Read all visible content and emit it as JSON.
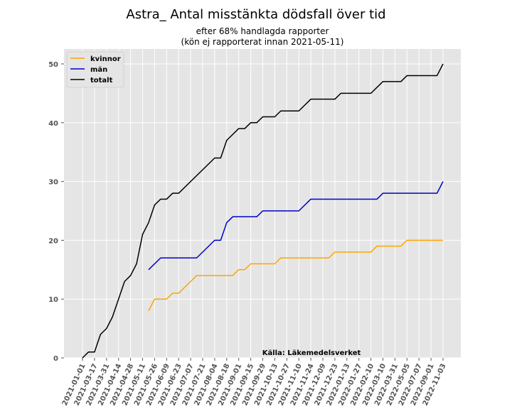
{
  "chart_data": {
    "type": "line",
    "title": "Astra_ Antal misstänkta dödsfall över tid",
    "subtitle_lines": [
      "efter 68% handlagda rapporter",
      "(kön ej rapporterat innan 2021-05-11)"
    ],
    "source": "Källa: Läkemedelsverket",
    "xlabel": "",
    "ylabel": "",
    "ylim": [
      0,
      52.5
    ],
    "yticks": [
      0,
      10,
      20,
      30,
      40,
      50
    ],
    "x_tick_labels": [
      "2021-01-01",
      "2021-03-17",
      "2021-03-31",
      "2021-04-14",
      "2021-04-28",
      "2021-05-11",
      "2021-05-26",
      "2021-06-09",
      "2021-06-23",
      "2021-07-07",
      "2021-07-21",
      "2021-08-04",
      "2021-08-18",
      "2021-09-01",
      "2021-09-15",
      "2021-09-29",
      "2021-10-13",
      "2021-10-27",
      "2021-11-10",
      "2021-11-24",
      "2021-12-09",
      "2021-12-23",
      "2022-01-13",
      "2022-01-27",
      "2022-02-10",
      "2022-03-10",
      "2022-03-31",
      "2022-05-05",
      "2022-07-07",
      "2022-09-01",
      "2022-11-03"
    ],
    "legend_position": "upper-left",
    "grid": true,
    "series": [
      {
        "name": "kvinnor",
        "color": "#ffa500",
        "points": [
          [
            5.5,
            8
          ],
          [
            6,
            10
          ],
          [
            7,
            10
          ],
          [
            7.5,
            11
          ],
          [
            8,
            11
          ],
          [
            9,
            13
          ],
          [
            9.5,
            14
          ],
          [
            10,
            14
          ],
          [
            12.5,
            14
          ],
          [
            13,
            15
          ],
          [
            13.5,
            15
          ],
          [
            14,
            16
          ],
          [
            16,
            16
          ],
          [
            16.5,
            17
          ],
          [
            20.5,
            17
          ],
          [
            21,
            18
          ],
          [
            24,
            18
          ],
          [
            24.5,
            19
          ],
          [
            26.5,
            19
          ],
          [
            27,
            20
          ],
          [
            30,
            20
          ]
        ]
      },
      {
        "name": "män",
        "color": "#0000cc",
        "points": [
          [
            5.5,
            15
          ],
          [
            6.5,
            17
          ],
          [
            9.5,
            17
          ],
          [
            11,
            20
          ],
          [
            11.5,
            20
          ],
          [
            12,
            23
          ],
          [
            12.5,
            24
          ],
          [
            14.5,
            24
          ],
          [
            15,
            25
          ],
          [
            18,
            25
          ],
          [
            19,
            27
          ],
          [
            24.5,
            27
          ],
          [
            25,
            28
          ],
          [
            29.5,
            28
          ],
          [
            30,
            30
          ]
        ]
      },
      {
        "name": "totalt",
        "color": "#000000",
        "points": [
          [
            0,
            0
          ],
          [
            0.5,
            1
          ],
          [
            1,
            1
          ],
          [
            1.5,
            4
          ],
          [
            2,
            5
          ],
          [
            2.5,
            7
          ],
          [
            3,
            10
          ],
          [
            3.5,
            13
          ],
          [
            4,
            14
          ],
          [
            4.5,
            16
          ],
          [
            5,
            21
          ],
          [
            5.5,
            23
          ],
          [
            6,
            26
          ],
          [
            6.5,
            27
          ],
          [
            7,
            27
          ],
          [
            7.5,
            28
          ],
          [
            8,
            28
          ],
          [
            11,
            34
          ],
          [
            11.5,
            34
          ],
          [
            12,
            37
          ],
          [
            13,
            39
          ],
          [
            13.5,
            39
          ],
          [
            14,
            40
          ],
          [
            14.5,
            40
          ],
          [
            15,
            41
          ],
          [
            16,
            41
          ],
          [
            16.5,
            42
          ],
          [
            18,
            42
          ],
          [
            19,
            44
          ],
          [
            21,
            44
          ],
          [
            21.5,
            45
          ],
          [
            24,
            45
          ],
          [
            25,
            47
          ],
          [
            26.5,
            47
          ],
          [
            27,
            48
          ],
          [
            29.5,
            48
          ],
          [
            30,
            50
          ]
        ]
      }
    ]
  }
}
